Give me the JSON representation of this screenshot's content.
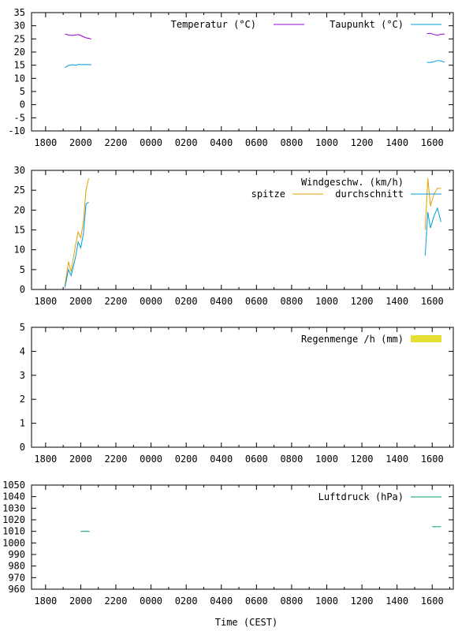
{
  "chart_data": [
    {
      "type": "line",
      "legend_placement": "top-right",
      "grid": false,
      "ylim": [
        -10,
        35
      ],
      "yticks": [
        35,
        30,
        25,
        20,
        15,
        10,
        5,
        0,
        -5,
        -10
      ],
      "xlim": [
        17.2,
        41.2
      ],
      "xticks": [
        18,
        20,
        22,
        24,
        26,
        28,
        30,
        32,
        34,
        36,
        38,
        40
      ],
      "xtick_labels": [
        "1800",
        "2000",
        "2200",
        "0000",
        "0200",
        "0400",
        "0600",
        "0800",
        "1000",
        "1200",
        "1400",
        "1600"
      ],
      "series": [
        {
          "name": "Temperatur (°C)",
          "color": "#9400d3",
          "segments": [
            [
              [
                19.1,
                26.8
              ],
              [
                19.3,
                26.5
              ],
              [
                19.5,
                26.3
              ],
              [
                19.7,
                26.5
              ],
              [
                19.9,
                26.6
              ],
              [
                20.1,
                26.0
              ],
              [
                20.3,
                25.4
              ],
              [
                20.5,
                25.2
              ],
              [
                20.6,
                24.9
              ]
            ],
            [
              [
                39.7,
                27.0
              ],
              [
                39.9,
                27.1
              ],
              [
                40.1,
                26.7
              ],
              [
                40.3,
                26.4
              ],
              [
                40.5,
                26.8
              ],
              [
                40.7,
                26.8
              ]
            ]
          ]
        },
        {
          "name": "Taupunkt (°C)",
          "color": "#009ed7",
          "segments": [
            [
              [
                19.1,
                14.1
              ],
              [
                19.3,
                14.9
              ],
              [
                19.5,
                15.2
              ],
              [
                19.7,
                15.0
              ],
              [
                19.9,
                15.3
              ],
              [
                20.1,
                15.2
              ],
              [
                20.3,
                15.3
              ],
              [
                20.5,
                15.2
              ],
              [
                20.6,
                15.1
              ]
            ],
            [
              [
                39.7,
                16.1
              ],
              [
                39.9,
                16.0
              ],
              [
                40.1,
                16.3
              ],
              [
                40.3,
                16.8
              ],
              [
                40.5,
                16.6
              ],
              [
                40.7,
                16.2
              ]
            ]
          ]
        }
      ]
    },
    {
      "type": "line",
      "title": "Windgeschw. (km/h)",
      "legend_placement": "top-right",
      "grid": false,
      "ylim": [
        0,
        30
      ],
      "yticks": [
        30,
        25,
        20,
        15,
        10,
        5,
        0
      ],
      "xlim": [
        17.2,
        41.2
      ],
      "xticks": [
        18,
        20,
        22,
        24,
        26,
        28,
        30,
        32,
        34,
        36,
        38,
        40
      ],
      "xtick_labels": [
        "1800",
        "2000",
        "2200",
        "0000",
        "0200",
        "0400",
        "0600",
        "0800",
        "1000",
        "1200",
        "1400",
        "1600"
      ],
      "series": [
        {
          "name": "spitze",
          "color": "#e69f00",
          "segments": [
            [
              [
                19.1,
                1.0
              ],
              [
                19.3,
                7.0
              ],
              [
                19.45,
                4.5
              ],
              [
                19.7,
                11.0
              ],
              [
                19.85,
                14.5
              ],
              [
                20.0,
                13.0
              ],
              [
                20.15,
                17.0
              ],
              [
                20.3,
                25.0
              ],
              [
                20.45,
                28.0
              ]
            ],
            [
              [
                39.6,
                15.0
              ],
              [
                39.75,
                28.0
              ],
              [
                39.9,
                21.0
              ],
              [
                40.1,
                24.0
              ],
              [
                40.3,
                25.5
              ],
              [
                40.5,
                25.5
              ]
            ]
          ]
        },
        {
          "name": "durchschnitt",
          "color": "#009ed7",
          "segments": [
            [
              [
                19.1,
                0.5
              ],
              [
                19.3,
                5.0
              ],
              [
                19.45,
                3.5
              ],
              [
                19.7,
                8.0
              ],
              [
                19.85,
                12.0
              ],
              [
                20.0,
                10.5
              ],
              [
                20.15,
                14.0
              ],
              [
                20.3,
                21.5
              ],
              [
                20.45,
                22.0
              ]
            ],
            [
              [
                39.6,
                8.5
              ],
              [
                39.75,
                19.5
              ],
              [
                39.9,
                15.5
              ],
              [
                40.1,
                18.5
              ],
              [
                40.3,
                20.5
              ],
              [
                40.5,
                17.0
              ]
            ]
          ]
        }
      ]
    },
    {
      "type": "bar",
      "legend_placement": "top-right",
      "grid": false,
      "ylim": [
        0,
        5
      ],
      "yticks": [
        5,
        4,
        3,
        2,
        1,
        0
      ],
      "xlim": [
        17.2,
        41.2
      ],
      "xticks": [
        18,
        20,
        22,
        24,
        26,
        28,
        30,
        32,
        34,
        36,
        38,
        40
      ],
      "xtick_labels": [
        "1800",
        "2000",
        "2200",
        "0000",
        "0200",
        "0400",
        "0600",
        "0800",
        "1000",
        "1200",
        "1400",
        "1600"
      ],
      "series": [
        {
          "name": "Regenmenge /h (mm)",
          "color": "#e5de35",
          "values": []
        }
      ]
    },
    {
      "type": "line",
      "xlabel": "Time (CEST)",
      "legend_placement": "top-right",
      "grid": false,
      "ylim": [
        960,
        1050
      ],
      "yticks": [
        1050,
        1040,
        1030,
        1020,
        1010,
        1000,
        990,
        980,
        970,
        960
      ],
      "xlim": [
        17.2,
        41.2
      ],
      "xticks": [
        18,
        20,
        22,
        24,
        26,
        28,
        30,
        32,
        34,
        36,
        38,
        40
      ],
      "xtick_labels": [
        "1800",
        "2000",
        "2200",
        "0000",
        "0200",
        "0400",
        "0600",
        "0800",
        "1000",
        "1200",
        "1400",
        "1600"
      ],
      "series": [
        {
          "name": "Luftdruck (hPa)",
          "color": "#009e73",
          "segments": [
            [
              [
                20.0,
                1010
              ],
              [
                20.5,
                1010
              ]
            ],
            [
              [
                40.0,
                1014
              ],
              [
                40.5,
                1014
              ]
            ]
          ]
        }
      ]
    }
  ]
}
